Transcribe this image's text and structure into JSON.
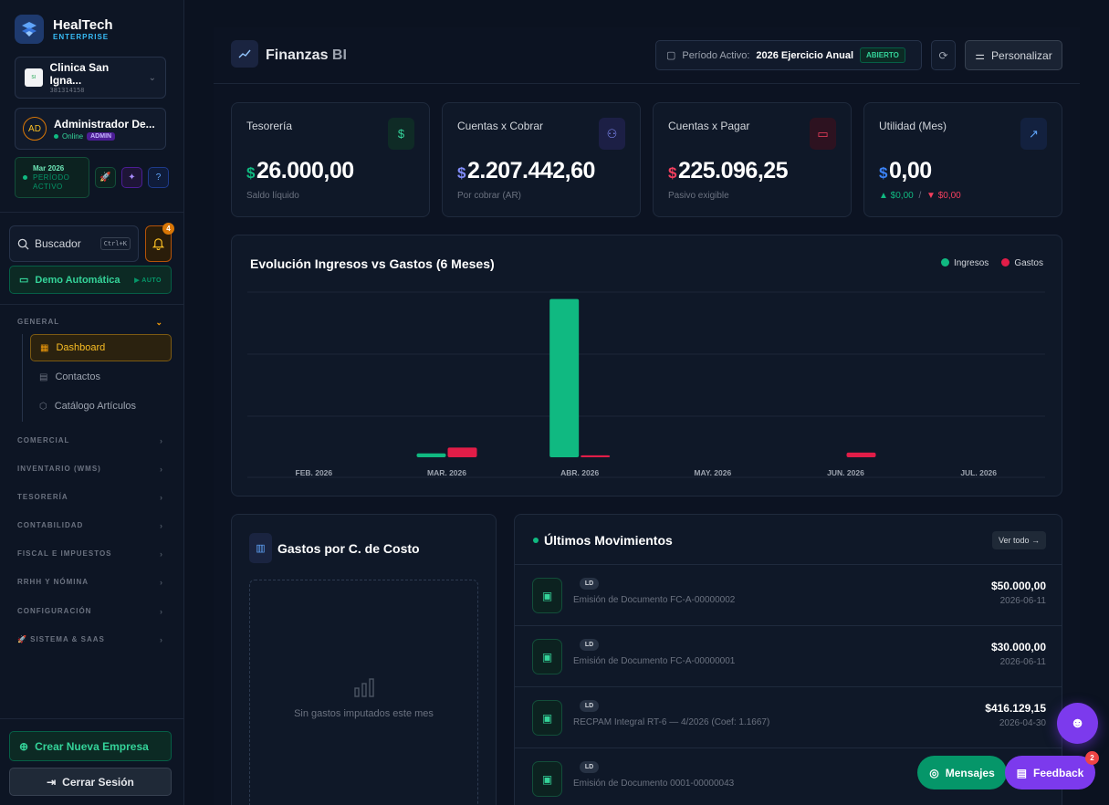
{
  "brand": {
    "name": "HealTech",
    "sub": "ENTERPRISE"
  },
  "org": {
    "name": "Clinica San Igna...",
    "id": "381314158",
    "logo_text": "SI"
  },
  "user": {
    "initials": "AD",
    "name": "Administrador De...",
    "status": "Online",
    "role": "ADMIN"
  },
  "period_box": {
    "month": "Mar 2026",
    "label1": "PERÍODO",
    "label2": "ACTIVO"
  },
  "search": {
    "label": "Buscador",
    "shortcut": "Ctrl+K"
  },
  "notifications": {
    "count": "4"
  },
  "demo": {
    "label": "Demo Automática",
    "mode": "▶ AUTO"
  },
  "nav": {
    "general": "GENERAL",
    "items": [
      {
        "label": "Dashboard"
      },
      {
        "label": "Contactos"
      },
      {
        "label": "Catálogo Artículos"
      }
    ],
    "sections": [
      "COMERCIAL",
      "INVENTARIO (WMS)",
      "TESORERÍA",
      "CONTABILIDAD",
      "FISCAL E IMPUESTOS",
      "RRHH Y NÓMINA",
      "CONFIGURACIÓN",
      "🚀 SISTEMA & SAAS"
    ]
  },
  "bottom": {
    "create": "Crear Nueva Empresa",
    "logout": "Cerrar Sesión"
  },
  "header": {
    "title": "Finanzas",
    "title_suffix": "BI",
    "period_label": "Período Activo:",
    "period_value": "2026 Ejercicio Anual",
    "period_status": "ABIERTO",
    "customize": "Personalizar"
  },
  "kpis": [
    {
      "label": "Tesorería",
      "currency": "$",
      "value": "26.000,00",
      "sub": "Saldo líquido",
      "color": "#10b981"
    },
    {
      "label": "Cuentas x Cobrar",
      "currency": "$",
      "value": "2.207.442,60",
      "sub": "Por cobrar (AR)",
      "color": "#818cf8"
    },
    {
      "label": "Cuentas x Pagar",
      "currency": "$",
      "value": "225.096,25",
      "sub": "Pasivo exigible",
      "color": "#f43f5e"
    },
    {
      "label": "Utilidad (Mes)",
      "currency": "$",
      "value": "0,00",
      "sub_up": "▲ $0,00",
      "sub_sep": "/",
      "sub_down": "▼ $0,00",
      "color": "#3b82f6"
    }
  ],
  "chart_data": {
    "type": "bar",
    "title": "Evolución Ingresos vs Gastos (6 Meses)",
    "categories": [
      "FEB. 2026",
      "MAR. 2026",
      "ABR. 2026",
      "MAY. 2026",
      "JUN. 2026",
      "JUL. 2026"
    ],
    "series": [
      {
        "name": "Ingresos",
        "color": "#10b981",
        "values": [
          0,
          50000,
          2050000,
          0,
          0,
          0
        ]
      },
      {
        "name": "Gastos",
        "color": "#e11d48",
        "values": [
          0,
          125000,
          25000,
          0,
          60000,
          0
        ]
      }
    ],
    "ylim": [
      0,
      2400000
    ],
    "grid": true,
    "legend": "top-right"
  },
  "cost_center": {
    "title": "Gastos por C. de Costo",
    "empty": "Sin gastos imputados este mes"
  },
  "movements": {
    "title": "Últimos Movimientos",
    "see_all": "Ver todo →",
    "rows": [
      {
        "tag": "LD",
        "desc": "Emisión de Documento FC-A-00000002",
        "amount": "$50.000,00",
        "date": "2026-06-11"
      },
      {
        "tag": "LD",
        "desc": "Emisión de Documento FC-A-00000001",
        "amount": "$30.000,00",
        "date": "2026-06-11"
      },
      {
        "tag": "LD",
        "desc": "RECPAM Integral RT-6 — 4/2026 (Coef: 1.1667)",
        "amount": "$416.129,15",
        "date": "2026-04-30"
      },
      {
        "tag": "LD",
        "desc": "Emisión de Documento 0001-00000043",
        "amount": "",
        "date": ""
      }
    ]
  },
  "floating": {
    "messages": "Mensajes",
    "feedback": "Feedback",
    "feedback_count": "2"
  }
}
